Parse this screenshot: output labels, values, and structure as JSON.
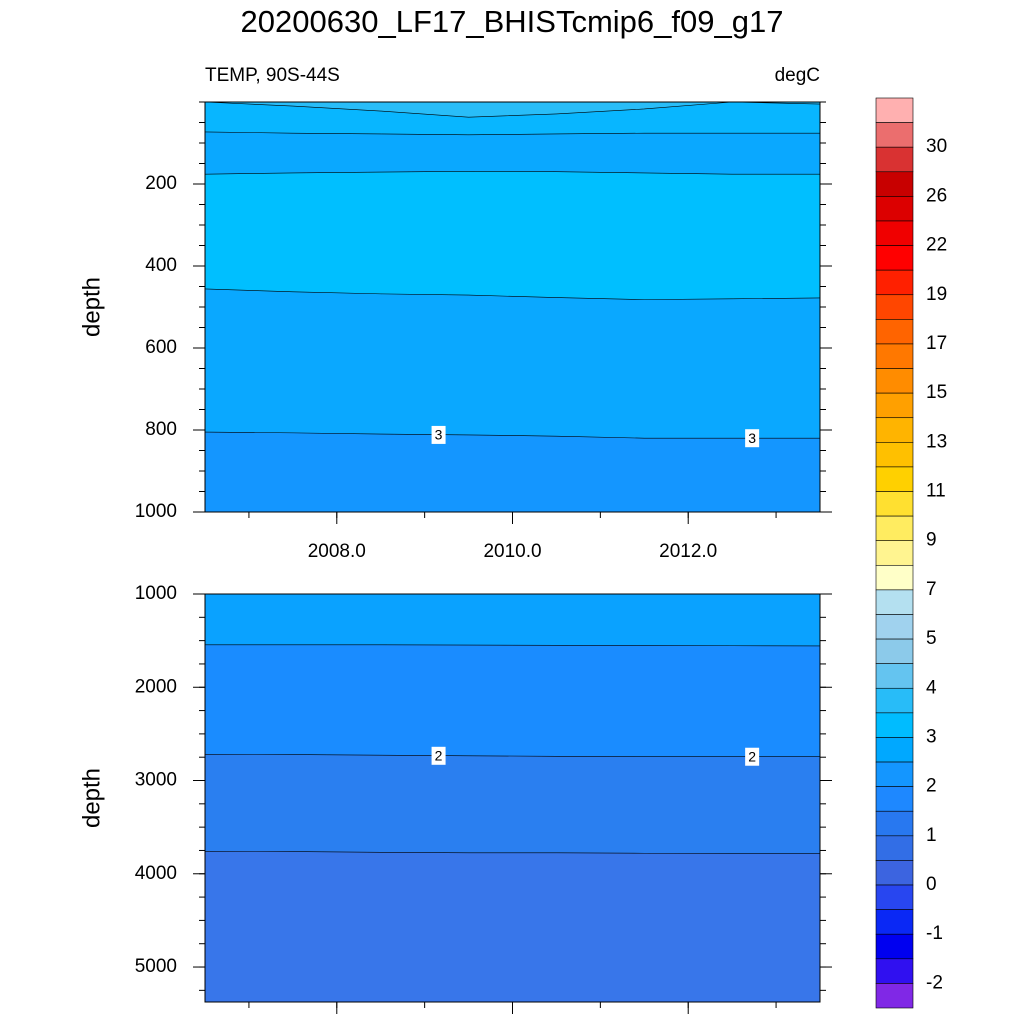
{
  "title": "20200630_LF17_BHISTcmip6_f09_g17",
  "subtitle_left": "TEMP, 90S-44S",
  "subtitle_right": "degC",
  "chart_data": [
    {
      "type": "contour",
      "y_label": "depth",
      "x": [
        2006.5,
        2007.5,
        2008.5,
        2009.5,
        2010.5,
        2011.5,
        2012.5,
        2013.5
      ],
      "xlim": [
        2006.5,
        2013.5
      ],
      "xticks": [
        {
          "value": 2008,
          "label": "2008.0"
        },
        {
          "value": 2010,
          "label": "2010.0"
        },
        {
          "value": 2012,
          "label": "2012.0"
        }
      ],
      "show_xtick_labels": true,
      "ylim": [
        0,
        1000
      ],
      "yticks": [
        200,
        400,
        600,
        800,
        1000
      ],
      "y_reversed": true,
      "band_colors": [
        "#29bdf8",
        "#08b6ff",
        "#0aa8ff",
        "#00bfff",
        "#0aa8ff",
        "#1496ff"
      ],
      "contours": [
        {
          "values": [
            0,
            10,
            22,
            37,
            29,
            17,
            0,
            5
          ]
        },
        {
          "values": [
            73,
            76,
            78,
            80,
            78,
            76,
            76,
            76
          ]
        },
        {
          "values": [
            176,
            173,
            171,
            169,
            170,
            173,
            176,
            176
          ]
        },
        {
          "values": [
            456,
            463,
            468,
            471,
            477,
            482,
            480,
            478
          ]
        },
        {
          "values": [
            805,
            807,
            810,
            812,
            815,
            820,
            820,
            820
          ],
          "label": "3"
        }
      ]
    },
    {
      "type": "contour",
      "y_label": "depth",
      "x": [
        2006.5,
        2007.5,
        2008.5,
        2009.5,
        2010.5,
        2011.5,
        2012.5,
        2013.5
      ],
      "xlim": [
        2006.5,
        2013.5
      ],
      "xticks": [
        2008,
        2010,
        2012
      ],
      "show_xtick_labels": false,
      "ylim": [
        1000,
        5375
      ],
      "yticks": [
        1000,
        2000,
        3000,
        4000,
        5000
      ],
      "y_reversed": true,
      "band_colors": [
        "#0aa2ff",
        "#1a8cff",
        "#2a7ff0",
        "#3876ea"
      ],
      "contours": [
        {
          "values": [
            1545,
            1545,
            1545,
            1548,
            1550,
            1552,
            1555,
            1557
          ]
        },
        {
          "values": [
            2720,
            2722,
            2728,
            2735,
            2740,
            2745,
            2745,
            2745
          ],
          "label": "2"
        },
        {
          "values": [
            3760,
            3762,
            3770,
            3775,
            3775,
            3780,
            3783,
            3783
          ]
        }
      ]
    }
  ],
  "colorbar": {
    "colors": [
      "#ffb0b0",
      "#eb6e6e",
      "#d93232",
      "#c80000",
      "#dc0000",
      "#f00000",
      "#ff0000",
      "#ff2000",
      "#ff4600",
      "#ff6400",
      "#ff7800",
      "#ff8c00",
      "#ffa000",
      "#ffb400",
      "#ffc000",
      "#ffd000",
      "#ffe030",
      "#ffec60",
      "#fff490",
      "#ffffc8",
      "#b4e0f0",
      "#a0d2ee",
      "#8ccaea",
      "#64c4f0",
      "#28bcf8",
      "#00bcff",
      "#00a8ff",
      "#1496ff",
      "#1e88ff",
      "#2878f0",
      "#326ee6",
      "#3c64e0",
      "#2846f0",
      "#0a28f5",
      "#0000f0",
      "#3010f0",
      "#8028e6"
    ],
    "ticks": [
      30,
      26,
      22,
      19,
      17,
      15,
      13,
      11,
      9,
      7,
      5,
      4,
      3,
      2,
      1,
      0,
      -1,
      -2
    ]
  }
}
